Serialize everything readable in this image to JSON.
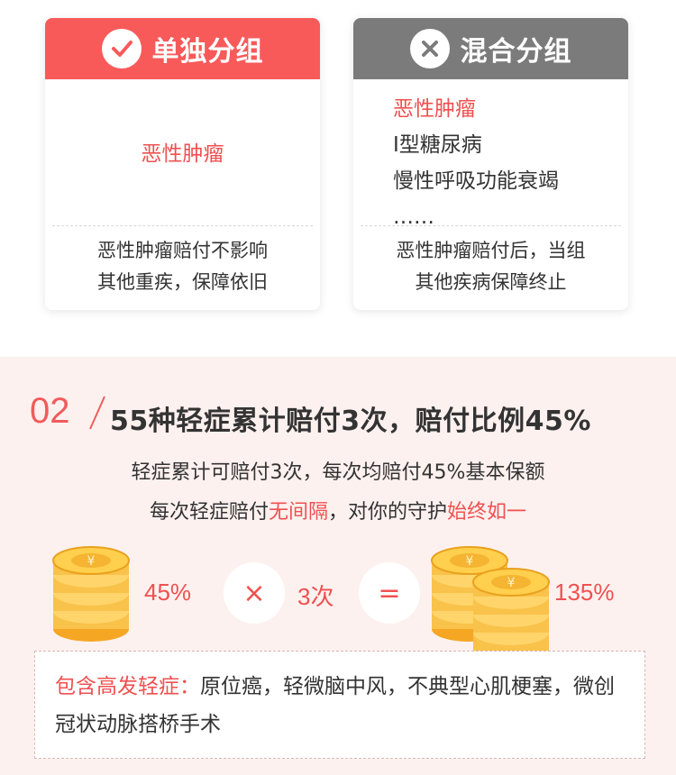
{
  "compare": {
    "left": {
      "title": "单独分组",
      "icon": "check-icon",
      "disease": "恶性肿瘤",
      "foot_line1": "恶性肿瘤赔付不影响",
      "foot_line2": "其他重疾，保障依旧",
      "color": "#f85a5a"
    },
    "right": {
      "title": "混合分组",
      "icon": "close-icon",
      "items": [
        "恶性肿瘤",
        "I型糖尿病",
        "慢性呼吸功能衰竭",
        "……"
      ],
      "foot_line1": "恶性肿瘤赔付后，当组",
      "foot_line2": "其他疾病保障终止",
      "color": "#7b7b7b"
    }
  },
  "section": {
    "number": "02",
    "title": "55种轻症累计赔付3次，赔付比例45%",
    "desc1": "轻症累计可赔付3次，每次均赔付45%基本保额",
    "desc2_part1": "每次轻症赔付",
    "desc2_highlight1": "无间隔",
    "desc2_part2": "，对你的守护",
    "desc2_highlight2": "始终如一",
    "formula": {
      "percent": "45%",
      "times_symbol": "×",
      "count": "3次",
      "equals_symbol": "=",
      "result": "135%"
    },
    "note_label": "包含高发轻症：",
    "note_text": "原位癌，轻微脑中风，不典型心肌梗塞，微创冠状动脉搭桥手术",
    "accent": "#f05050",
    "background": "#fdf1ef"
  }
}
